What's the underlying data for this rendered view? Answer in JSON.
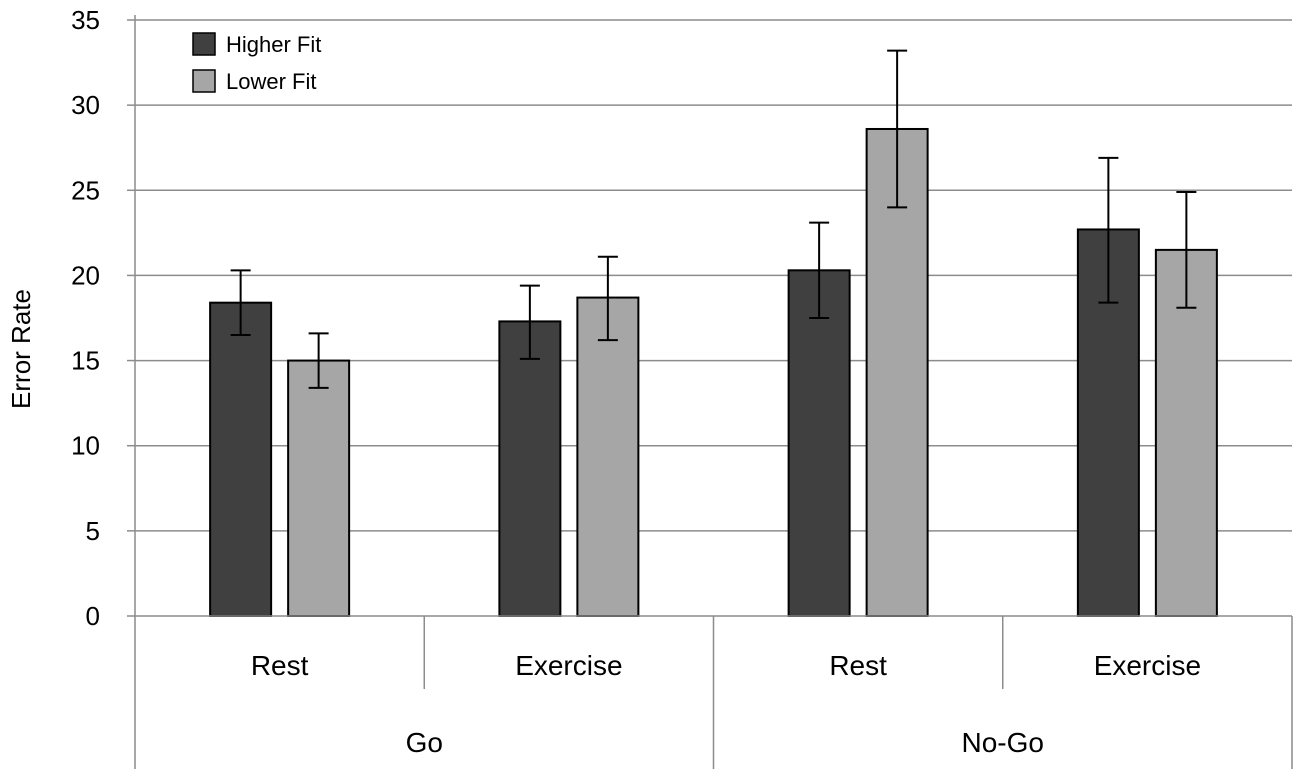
{
  "chart_data": {
    "type": "bar",
    "title": "",
    "xlabel": "",
    "ylabel": "Error Rate",
    "ylim": [
      0,
      35
    ],
    "yticks": [
      0,
      5,
      10,
      15,
      20,
      25,
      30,
      35
    ],
    "grid": true,
    "legend_position": "top-left",
    "groups": [
      {
        "label": "Go",
        "categories": [
          "Rest",
          "Exercise"
        ]
      },
      {
        "label": "No-Go",
        "categories": [
          "Rest",
          "Exercise"
        ]
      }
    ],
    "categories": [
      "Rest",
      "Exercise",
      "Rest",
      "Exercise"
    ],
    "series": [
      {
        "name": "Higher Fit",
        "color": "#404040",
        "values": [
          18.4,
          17.3,
          20.3,
          22.7
        ],
        "error_low": [
          16.5,
          15.1,
          17.5,
          18.4
        ],
        "error_high": [
          20.3,
          19.4,
          23.1,
          26.9
        ]
      },
      {
        "name": "Lower Fit",
        "color": "#a6a6a6",
        "values": [
          15.0,
          18.7,
          28.6,
          21.5
        ],
        "error_low": [
          13.4,
          16.2,
          24.0,
          18.1
        ],
        "error_high": [
          16.6,
          21.1,
          33.2,
          24.9
        ]
      }
    ]
  }
}
